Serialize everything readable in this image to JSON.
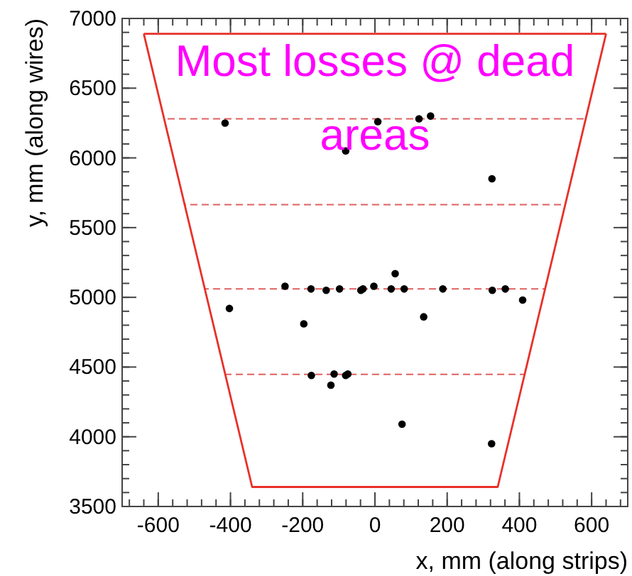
{
  "chart_data": {
    "type": "scatter",
    "xlabel": "x, mm (along strips)",
    "ylabel": "y, mm (along wires)",
    "annotations": [
      "Most losses @ dead areas"
    ],
    "xlim": [
      -700,
      700
    ],
    "ylim": [
      3500,
      7000
    ],
    "xticks": [
      -600,
      -400,
      -200,
      0,
      200,
      400,
      600
    ],
    "yticks": [
      3500,
      4000,
      4500,
      5000,
      5500,
      6000,
      6500,
      7000
    ],
    "grid": false,
    "series": [
      {
        "color": "#000000",
        "marker": "circle",
        "x": [
          -415,
          8,
          122,
          154,
          -81,
          324,
          -249,
          -177,
          -135,
          -98,
          -39,
          -33,
          -3,
          45,
          56,
          81,
          188,
          325,
          361,
          409,
          -403,
          -197,
          135,
          -176,
          -113,
          -122,
          -81,
          -75,
          75,
          323
        ],
        "values": [
          6250,
          6260,
          6280,
          6300,
          6050,
          5850,
          5080,
          5060,
          5050,
          5060,
          5050,
          5060,
          5080,
          5060,
          5170,
          5060,
          5060,
          5050,
          5060,
          4980,
          4920,
          4810,
          4860,
          4440,
          4450,
          4370,
          4440,
          4450,
          4090,
          3950
        ]
      },
      {
        "type": "line",
        "color": "#e8302a",
        "x": [
          -640,
          -340,
          340,
          640
        ],
        "values": [
          6890,
          3640,
          3640,
          6890
        ]
      },
      {
        "type": "line",
        "color": "#e8302a",
        "x": [
          -640,
          640
        ],
        "values": [
          6890,
          6890
        ]
      }
    ],
    "ref_lines": [
      {
        "axis": "y",
        "value": 6280,
        "color": "#e06060",
        "line_style": "dashed"
      },
      {
        "axis": "y",
        "value": 5665,
        "color": "#e06060",
        "line_style": "dashed"
      },
      {
        "axis": "y",
        "value": 5060,
        "color": "#e06060",
        "line_style": "dashed"
      },
      {
        "axis": "y",
        "value": 4448,
        "color": "#e06060",
        "line_style": "dashed"
      }
    ]
  }
}
